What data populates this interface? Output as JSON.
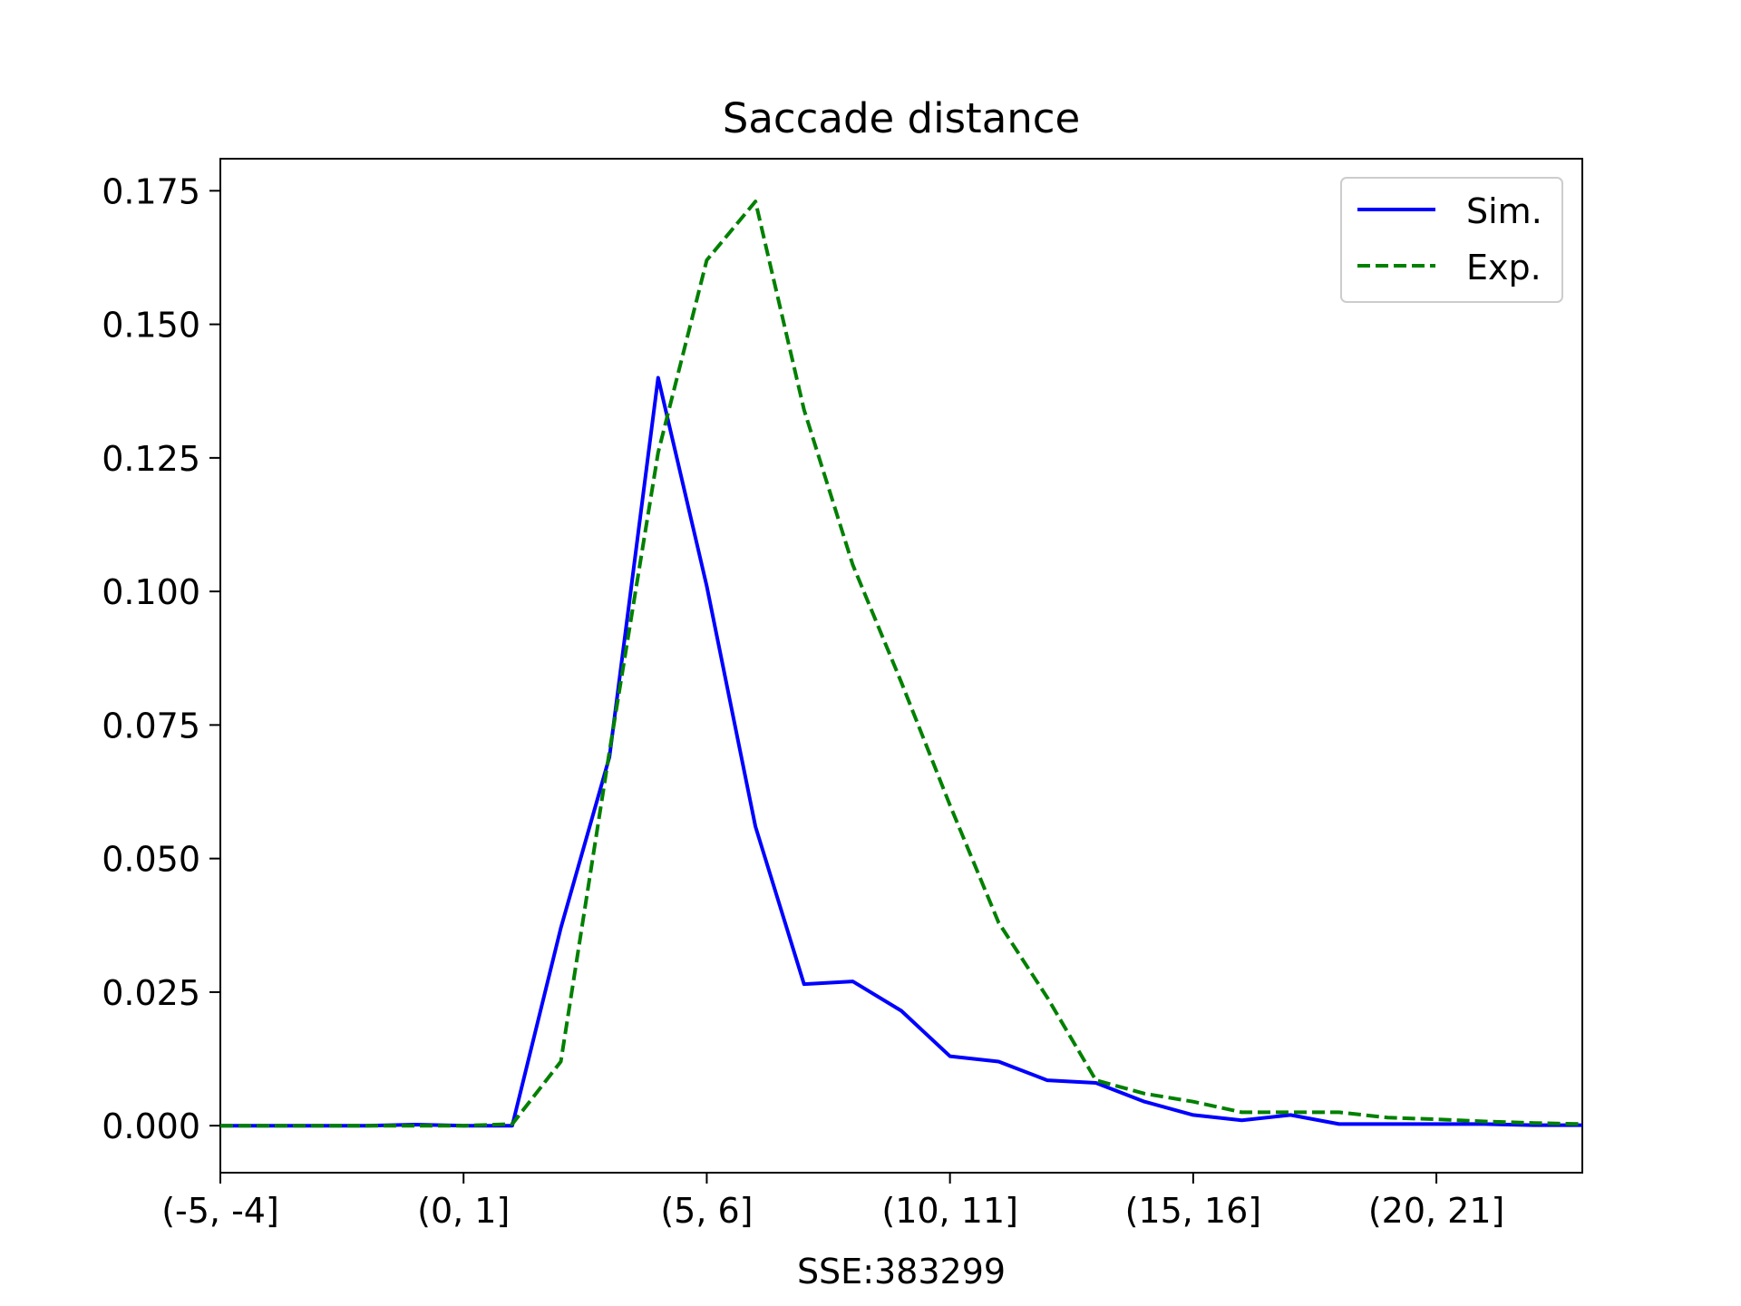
{
  "chart_data": {
    "type": "line",
    "title": "Saccade distance",
    "xlabel": "SSE:383299",
    "ylabel": "",
    "x_tick_labels": [
      "(-5, -4]",
      "(0, 1]",
      "(5, 6]",
      "(10, 11]",
      "(15, 16]",
      "(20, 21]"
    ],
    "x_tick_positions": [
      0,
      5,
      10,
      15,
      20,
      25
    ],
    "y_ticks": [
      "0.000",
      "0.025",
      "0.050",
      "0.075",
      "0.100",
      "0.125",
      "0.150",
      "0.175"
    ],
    "ylim": [
      -0.0088,
      0.181
    ],
    "xlim": [
      0,
      28
    ],
    "legend_position": "upper right",
    "series": [
      {
        "name": "Sim.",
        "color": "#0000ff",
        "style": "solid",
        "values": [
          0,
          0,
          0,
          0,
          0.0002,
          0,
          0,
          0.037,
          0.069,
          0.14,
          0.101,
          0.056,
          0.0265,
          0.027,
          0.0215,
          0.013,
          0.012,
          0.0085,
          0.008,
          0.0045,
          0.002,
          0.001,
          0.002,
          0.0003,
          0.0003,
          0.0003,
          0.0003,
          0.0001,
          0.0001
        ]
      },
      {
        "name": "Exp.",
        "color": "#008000",
        "style": "dashed",
        "values": [
          0,
          0,
          0,
          0,
          0,
          0,
          0.0003,
          0.012,
          0.07,
          0.126,
          0.162,
          0.173,
          0.134,
          0.105,
          0.083,
          0.06,
          0.038,
          0.024,
          0.0085,
          0.006,
          0.0045,
          0.0025,
          0.0025,
          0.0025,
          0.0015,
          0.0012,
          0.0008,
          0.0005,
          0.0003
        ]
      }
    ]
  }
}
